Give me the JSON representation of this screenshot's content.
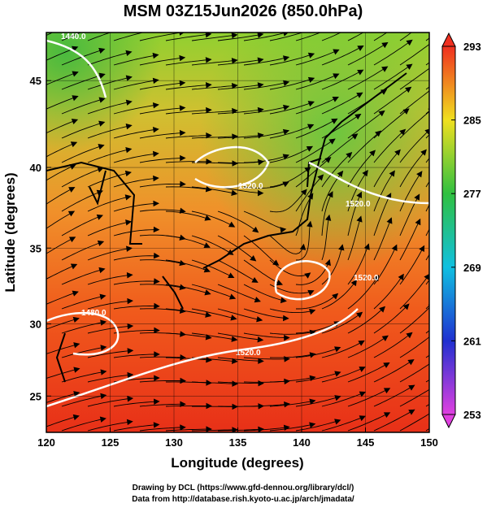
{
  "title": "MSM 03Z15Jun2026 (850.0hPa)",
  "map": {
    "xlabel": "Longitude (degrees)",
    "ylabel": "Latitude  (degrees)",
    "xlim": [
      120,
      150
    ],
    "ylim": [
      22.4,
      47.6
    ],
    "xticks": [
      120,
      125,
      130,
      135,
      140,
      145,
      150
    ],
    "yticks": [
      25,
      30,
      35,
      40,
      45
    ],
    "contour_labels": [
      "1440.0",
      "1520.0",
      "1520.0",
      "1480.0",
      "1520.0",
      "1520.0"
    ]
  },
  "colorbar": {
    "lim": [
      253,
      293
    ],
    "ticks": [
      253,
      261,
      269,
      277,
      285,
      293
    ],
    "colors": [
      "#e040e0",
      "#2030d0",
      "#10c0e0",
      "#30c040",
      "#f0e020",
      "#f03020"
    ]
  },
  "footer": [
    "Drawing by DCL (https://www.gfd-dennou.org/library/dcl/)",
    "Data from http://database.rish.kyoto-u.ac.jp/arch/jmadata/"
  ]
}
